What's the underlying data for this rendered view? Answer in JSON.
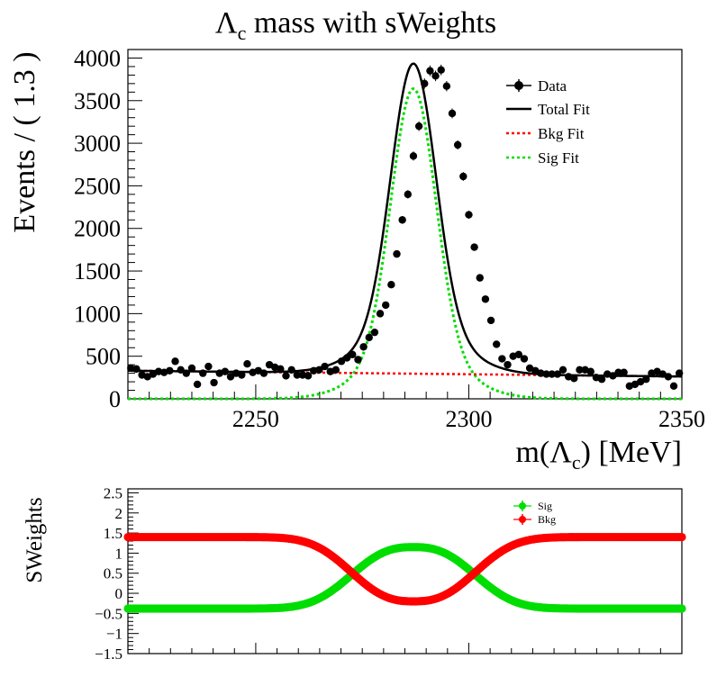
{
  "chart_data": [
    {
      "type": "scatter",
      "title_base": "Λ",
      "title_sub": "c",
      "title_rest": " mass with sWeights",
      "xlabel_pre": "m(Λ",
      "xlabel_sub": "c",
      "xlabel_post": ") [MeV]",
      "ylabel": "Events / ( 1.3 )",
      "xlim": [
        2220,
        2350
      ],
      "ylim": [
        0,
        4100
      ],
      "xticks": [
        "2250",
        "2300",
        "2350"
      ],
      "yticks": [
        "0",
        "500",
        "1000",
        "1500",
        "2000",
        "2500",
        "3000",
        "3500",
        "4000"
      ],
      "legend_position": "top-right",
      "legend": [
        "Data",
        "Total Fit",
        "Bkg Fit",
        "Sig Fit"
      ],
      "colors": {
        "data": "#000000",
        "total": "#000000",
        "bkg": "#ff0000",
        "sig": "#00dd00"
      },
      "fit_model": {
        "signal_mean": 2287,
        "signal_sigma": 5.2,
        "signal_peak": 3640,
        "background_start": 330,
        "background_end": 262
      },
      "series": [
        {
          "name": "Data",
          "x": [
            2220.7,
            2222.0,
            2223.3,
            2224.6,
            2225.9,
            2227.2,
            2228.5,
            2229.8,
            2231.1,
            2232.4,
            2233.7,
            2235.0,
            2236.3,
            2237.6,
            2238.9,
            2240.2,
            2241.5,
            2242.8,
            2244.1,
            2245.4,
            2246.7,
            2248.0,
            2249.3,
            2250.6,
            2251.9,
            2253.2,
            2254.5,
            2255.8,
            2257.1,
            2258.4,
            2259.7,
            2261.0,
            2262.3,
            2263.6,
            2264.9,
            2266.2,
            2267.5,
            2268.8,
            2270.1,
            2271.4,
            2272.7,
            2274.0,
            2275.3,
            2276.6,
            2277.9,
            2279.2,
            2280.5,
            2281.8,
            2283.1,
            2284.4,
            2285.7,
            2287.0,
            2288.3,
            2289.6,
            2290.9,
            2292.2,
            2293.5,
            2294.8,
            2296.1,
            2297.4,
            2298.7,
            2300.0,
            2301.3,
            2302.6,
            2303.9,
            2305.2,
            2306.5,
            2307.8,
            2309.1,
            2310.4,
            2311.7,
            2313.0,
            2314.3,
            2315.6,
            2316.9,
            2318.2,
            2319.5,
            2320.8,
            2322.1,
            2323.4,
            2324.7,
            2326.0,
            2327.3,
            2328.6,
            2329.9,
            2331.2,
            2332.5,
            2333.8,
            2335.1,
            2336.4,
            2337.7,
            2339.0,
            2340.3,
            2341.6,
            2342.9,
            2344.2,
            2345.5,
            2346.8,
            2348.1,
            2349.4
          ],
          "y": [
            360,
            350,
            280,
            260,
            290,
            320,
            310,
            330,
            440,
            340,
            300,
            360,
            170,
            300,
            380,
            190,
            300,
            320,
            260,
            300,
            280,
            410,
            310,
            330,
            300,
            400,
            370,
            350,
            270,
            340,
            280,
            280,
            270,
            330,
            340,
            380,
            320,
            340,
            440,
            480,
            520,
            460,
            610,
            720,
            780,
            1000,
            1100,
            1340,
            1700,
            2100,
            2400,
            2850,
            3200,
            3700,
            3850,
            3790,
            3860,
            3670,
            3350,
            2980,
            2610,
            2160,
            1780,
            1420,
            1170,
            920,
            640,
            470,
            400,
            500,
            520,
            470,
            360,
            330,
            300,
            290,
            290,
            290,
            340,
            260,
            240,
            340,
            340,
            320,
            250,
            230,
            290,
            270,
            310,
            310,
            150,
            170,
            200,
            230,
            300,
            320,
            290,
            260,
            150,
            300
          ]
        },
        {
          "name": "Total Fit"
        },
        {
          "name": "Bkg Fit"
        },
        {
          "name": "Sig Fit"
        }
      ]
    },
    {
      "type": "scatter",
      "ylabel": "SWeights",
      "xlim": [
        2220,
        2350
      ],
      "ylim": [
        -1.5,
        2.6
      ],
      "yticks": [
        "2.5",
        "2",
        "1.5",
        "1",
        "0.5",
        "0",
        "-0.5",
        "-1",
        "-1.5"
      ],
      "legend_position": "top-right",
      "legend": [
        "Sig",
        "Bkg"
      ],
      "colors": {
        "sig": "#00dd00",
        "bkg": "#ff0000"
      },
      "weight_model": {
        "sig_low": -0.38,
        "sig_high": 1.15,
        "bkg_low": -0.2,
        "bkg_high": 1.4
      }
    }
  ]
}
